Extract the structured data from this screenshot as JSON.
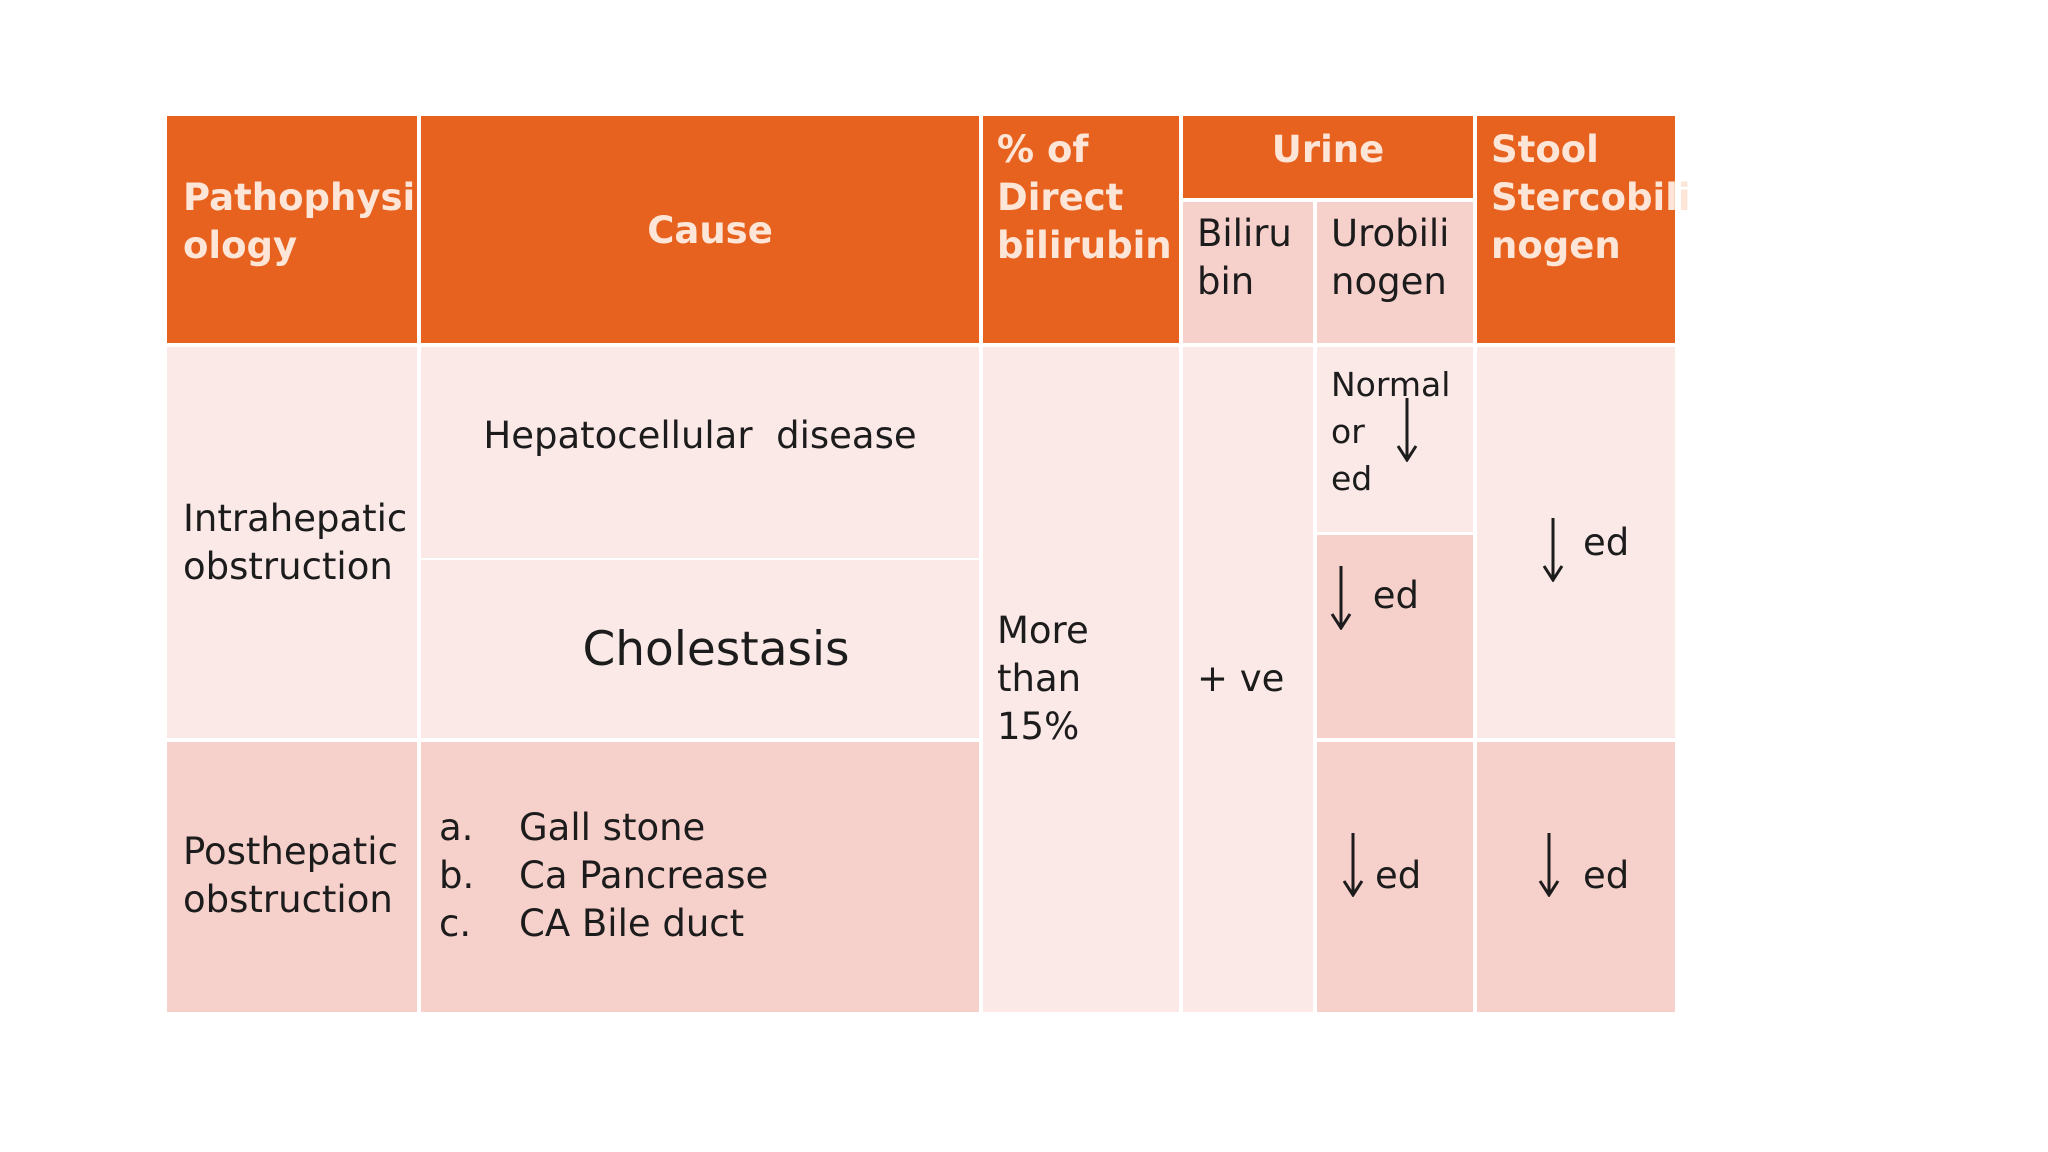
{
  "header": {
    "pathophysiology": "Pathophysi ology",
    "cause": "Cause",
    "direct_bilirubin": "% of Direct bilirubin",
    "urine": "Urine",
    "bilirubin": "Biliru bin",
    "urobilinogen": "Urobili nogen",
    "stool": "Stool Stercobili nogen"
  },
  "rows": {
    "intrahepatic": {
      "label": "Intrahepatic obstruction",
      "cause_1": "Hepatocellular  disease",
      "cause_2": "Cholestasis",
      "urobilinogen_1": {
        "line1": "Normal",
        "line2": "or",
        "line3": "ed"
      },
      "urobilinogen_2": "ed",
      "stool": "ed"
    },
    "posthepatic": {
      "label": "Posthepatic obstruction",
      "causes": [
        {
          "marker": "a.",
          "text": "Gall stone"
        },
        {
          "marker": "b.",
          "text": "Ca Pancrease"
        },
        {
          "marker": "c.",
          "text": "CA Bile duct"
        }
      ],
      "urobilinogen": "ed",
      "stool": "ed"
    }
  },
  "shared": {
    "direct_bilirubin": "More than 15%",
    "bilirubin": "+ ve"
  },
  "icons": {
    "decrease": "down-arrow-icon"
  },
  "colors": {
    "header": "#e8621f",
    "light_row": "#fbe9e8",
    "mid_row": "#f6d0cb"
  }
}
